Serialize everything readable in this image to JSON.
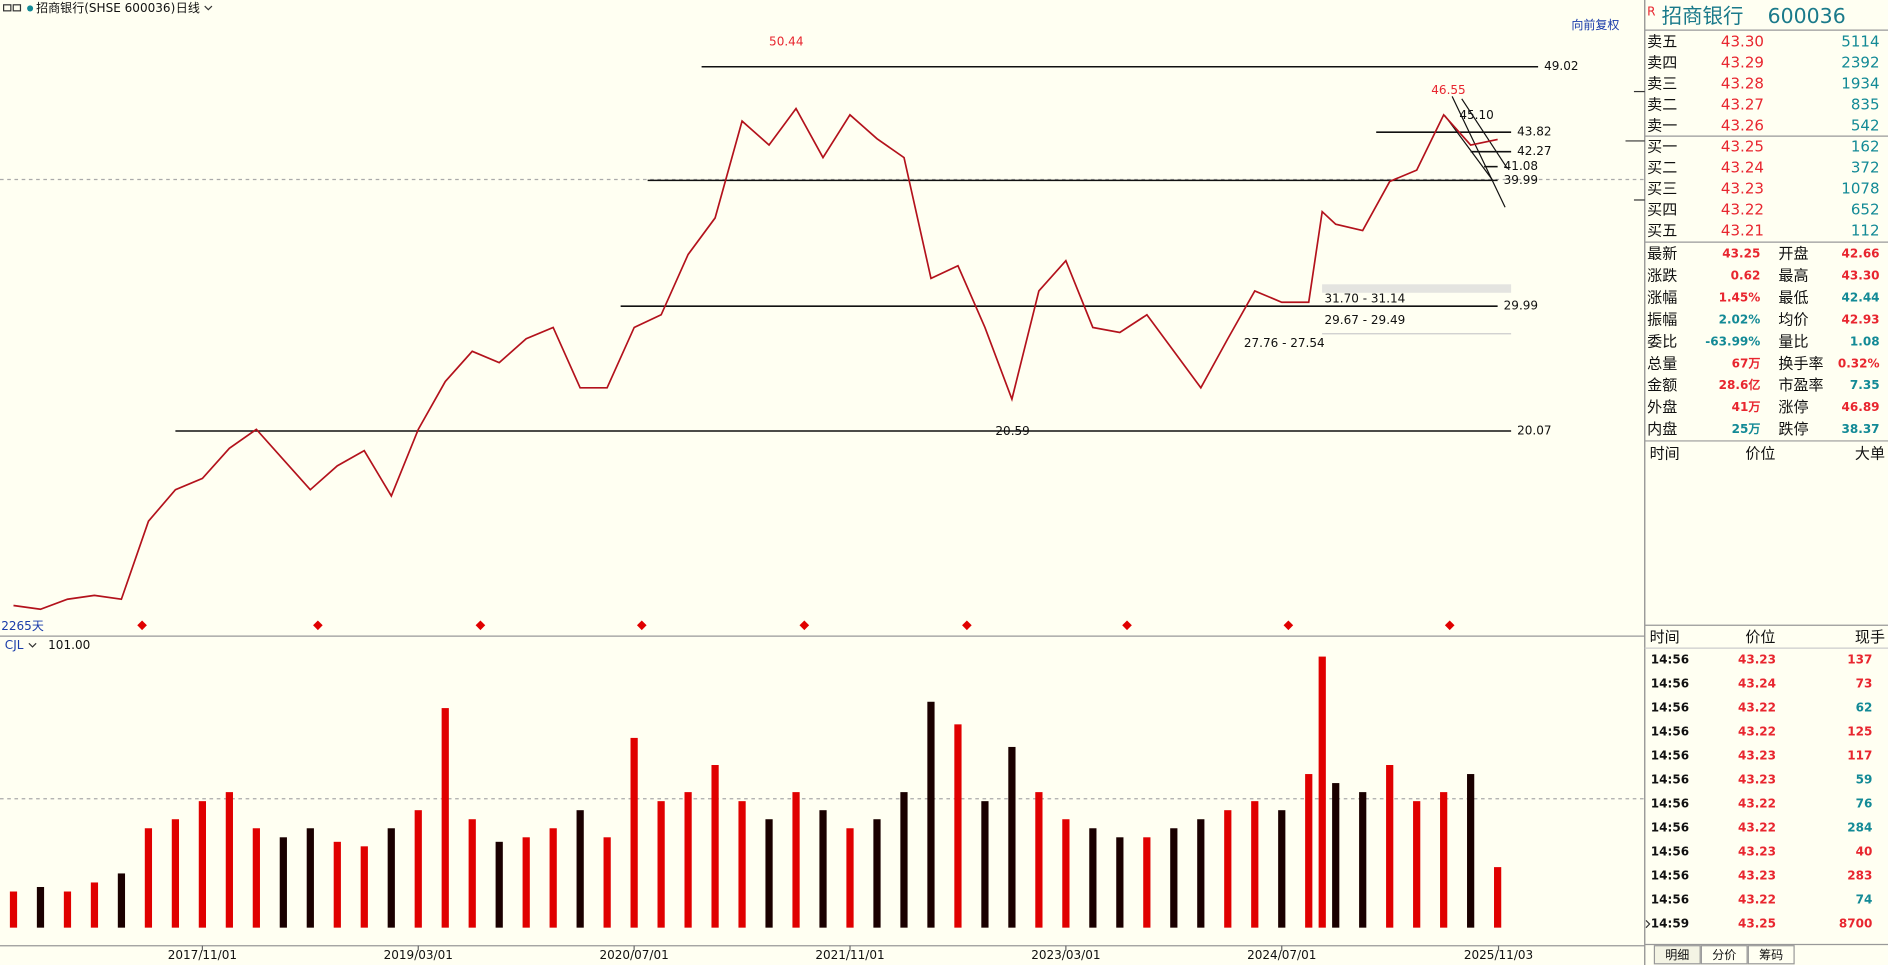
{
  "header": {
    "symbol": "招商银行(SHSE 600036)",
    "period": "日线",
    "adjust": "向前复权"
  },
  "chart_data": [
    {
      "type": "line",
      "color": "#b3121c",
      "x": [
        "2016/09",
        "2016/11",
        "2017/01",
        "2017/03",
        "2017/05",
        "2017/07",
        "2017/09",
        "2017/11",
        "2018/01",
        "2018/03",
        "2018/05",
        "2018/07",
        "2018/09",
        "2018/11",
        "2019/01",
        "2019/03",
        "2019/05",
        "2019/07",
        "2019/09",
        "2019/11",
        "2020/01",
        "2020/03",
        "2020/05",
        "2020/07",
        "2020/09",
        "2020/11",
        "2021/01",
        "2021/03",
        "2021/05",
        "2021/07",
        "2021/09",
        "2021/11",
        "2022/01",
        "2022/03",
        "2022/05",
        "2022/07",
        "2022/09",
        "2022/11",
        "2023/01",
        "2023/03",
        "2023/05",
        "2023/07",
        "2023/09",
        "2023/11",
        "2024/01",
        "2024/03",
        "2024/05",
        "2024/07",
        "2024/09",
        "2024/10",
        "2024/11",
        "2025/01",
        "2025/03",
        "2025/05",
        "2025/07",
        "2025/09",
        "2025/11"
      ],
      "values": [
        6.2,
        5.9,
        6.7,
        7.0,
        6.7,
        12.9,
        15.4,
        16.3,
        18.7,
        20.2,
        17.8,
        15.4,
        17.3,
        18.5,
        14.9,
        20.2,
        24.0,
        26.4,
        25.5,
        27.4,
        28.3,
        23.5,
        23.5,
        28.3,
        29.3,
        34.1,
        37.0,
        44.7,
        42.8,
        45.7,
        41.8,
        45.2,
        43.3,
        41.8,
        32.2,
        33.2,
        28.3,
        22.6,
        31.2,
        33.6,
        28.3,
        27.9,
        29.3,
        26.4,
        23.5,
        27.4,
        31.2,
        30.3,
        30.3,
        37.5,
        36.5,
        36.0,
        39.9,
        40.8,
        45.2,
        42.8,
        43.25
      ],
      "xlim": [
        "2016/08",
        "2025/12"
      ],
      "ylim": [
        5.3,
        52.6
      ],
      "xticks": [
        "2017/11/01",
        "2019/03/01",
        "2020/07/01",
        "2021/11/01",
        "2023/03/01",
        "2024/07/01",
        "2025/11/03"
      ],
      "levels": [
        {
          "value": 49.02,
          "from": "2020/12",
          "to": "2026/02"
        },
        {
          "value": 43.82,
          "from": "2025/02",
          "to": "2025/12"
        },
        {
          "value": 42.27,
          "from": "2025/09",
          "to": "2025/12"
        },
        {
          "value": 41.08,
          "from": "2025/10",
          "to": "2025/11"
        },
        {
          "value": 39.99,
          "from": "2020/08",
          "to": "2025/11"
        },
        {
          "value": 29.99,
          "from": "2020/06",
          "to": "2025/11"
        },
        {
          "value": 20.07,
          "from": "2017/09",
          "to": "2025/12"
        }
      ],
      "annotations": [
        "50.44",
        "46.55",
        "45.10",
        "20.59",
        "31.70 - 31.14",
        "29.67 - 29.49",
        "27.76 - 27.54"
      ],
      "days_label": "2265天"
    },
    {
      "type": "bar",
      "title": "CJL",
      "subtitle": "101.00",
      "up_color": "#e00000",
      "down_color": "#1a0000",
      "values": [
        40,
        45,
        40,
        50,
        60,
        110,
        120,
        140,
        150,
        110,
        100,
        110,
        95,
        90,
        110,
        130,
        243,
        120,
        95,
        100,
        110,
        130,
        100,
        210,
        140,
        150,
        180,
        140,
        120,
        150,
        130,
        110,
        120,
        150,
        250,
        225,
        140,
        200,
        150,
        120,
        110,
        100,
        100,
        110,
        120,
        130,
        140,
        130,
        170,
        300,
        160,
        150,
        180,
        140,
        150,
        170,
        67
      ],
      "ylim": [
        0,
        300
      ]
    }
  ],
  "quote": {
    "flag": "R",
    "name": "招商银行",
    "code": "600036",
    "book": [
      {
        "label": "卖五",
        "price": "43.30",
        "volume": "5114"
      },
      {
        "label": "卖四",
        "price": "43.29",
        "volume": "2392"
      },
      {
        "label": "卖三",
        "price": "43.28",
        "volume": "1934"
      },
      {
        "label": "卖二",
        "price": "43.27",
        "volume": "835"
      },
      {
        "label": "卖一",
        "price": "43.26",
        "volume": "542"
      },
      {
        "label": "买一",
        "price": "43.25",
        "volume": "162"
      },
      {
        "label": "买二",
        "price": "43.24",
        "volume": "372"
      },
      {
        "label": "买三",
        "price": "43.23",
        "volume": "1078"
      },
      {
        "label": "买四",
        "price": "43.22",
        "volume": "652"
      },
      {
        "label": "买五",
        "price": "43.21",
        "volume": "112"
      }
    ],
    "stats": [
      {
        "label": "最新",
        "value": "43.25",
        "color": "#e8262f"
      },
      {
        "label": "开盘",
        "value": "42.66",
        "color": "#e8262f"
      },
      {
        "label": "涨跌",
        "value": "0.62",
        "color": "#e8262f"
      },
      {
        "label": "最高",
        "value": "43.30",
        "color": "#e8262f"
      },
      {
        "label": "涨幅",
        "value": "1.45%",
        "color": "#e8262f"
      },
      {
        "label": "最低",
        "value": "42.44",
        "color": "#138a96"
      },
      {
        "label": "振幅",
        "value": "2.02%",
        "color": "#138a96"
      },
      {
        "label": "均价",
        "value": "42.93",
        "color": "#e8262f"
      },
      {
        "label": "委比",
        "value": "-63.99%",
        "color": "#138a96"
      },
      {
        "label": "量比",
        "value": "1.08",
        "color": "#138a96"
      },
      {
        "label": "总量",
        "value": "67万",
        "color": "#e8262f"
      },
      {
        "label": "换手率",
        "value": "0.32%",
        "color": "#e8262f"
      },
      {
        "label": "金额",
        "value": "28.6亿",
        "color": "#e8262f"
      },
      {
        "label": "市盈率",
        "value": "7.35",
        "color": "#138a96"
      },
      {
        "label": "外盘",
        "value": "41万",
        "color": "#e8262f"
      },
      {
        "label": "涨停",
        "value": "46.89",
        "color": "#e8262f"
      },
      {
        "label": "内盘",
        "value": "25万",
        "color": "#138a96"
      },
      {
        "label": "跌停",
        "value": "38.37",
        "color": "#138a96"
      }
    ],
    "big_header": [
      "时间",
      "价位",
      "大单"
    ],
    "trades_header": [
      "时间",
      "价位",
      "现手"
    ],
    "trades": [
      {
        "time": "14:56",
        "price": "43.23",
        "volume": "137",
        "color": "#e8262f"
      },
      {
        "time": "14:56",
        "price": "43.24",
        "volume": "73",
        "color": "#e8262f"
      },
      {
        "time": "14:56",
        "price": "43.22",
        "volume": "62",
        "color": "#138a96"
      },
      {
        "time": "14:56",
        "price": "43.22",
        "volume": "125",
        "color": "#e8262f"
      },
      {
        "time": "14:56",
        "price": "43.23",
        "volume": "117",
        "color": "#e8262f"
      },
      {
        "time": "14:56",
        "price": "43.23",
        "volume": "59",
        "color": "#138a96"
      },
      {
        "time": "14:56",
        "price": "43.22",
        "volume": "76",
        "color": "#138a96"
      },
      {
        "time": "14:56",
        "price": "43.22",
        "volume": "284",
        "color": "#138a96"
      },
      {
        "time": "14:56",
        "price": "43.23",
        "volume": "40",
        "color": "#e8262f"
      },
      {
        "time": "14:56",
        "price": "43.23",
        "volume": "283",
        "color": "#e8262f"
      },
      {
        "time": "14:56",
        "price": "43.22",
        "volume": "74",
        "color": "#138a96"
      },
      {
        "time": "14:59",
        "price": "43.25",
        "volume": "8700",
        "color": "#e8262f"
      }
    ],
    "tabs": [
      "明细",
      "分价",
      "筹码"
    ]
  }
}
